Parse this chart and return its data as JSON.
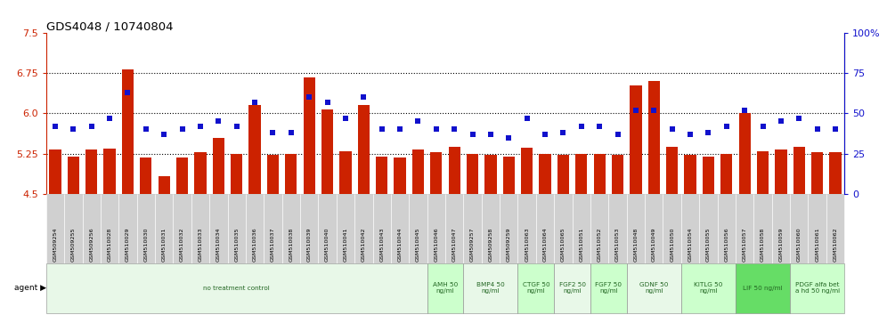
{
  "title": "GDS4048 / 10740804",
  "categories": [
    "GSM509254",
    "GSM509255",
    "GSM509256",
    "GSM510028",
    "GSM510029",
    "GSM510030",
    "GSM510031",
    "GSM510032",
    "GSM510033",
    "GSM510034",
    "GSM510035",
    "GSM510036",
    "GSM510037",
    "GSM510038",
    "GSM510039",
    "GSM510040",
    "GSM510041",
    "GSM510042",
    "GSM510043",
    "GSM510044",
    "GSM510045",
    "GSM510046",
    "GSM510047",
    "GSM509257",
    "GSM509258",
    "GSM509259",
    "GSM510063",
    "GSM510064",
    "GSM510065",
    "GSM510051",
    "GSM510052",
    "GSM510053",
    "GSM510048",
    "GSM510049",
    "GSM510050",
    "GSM510054",
    "GSM510055",
    "GSM510056",
    "GSM510057",
    "GSM510058",
    "GSM510059",
    "GSM510060",
    "GSM510061",
    "GSM510062"
  ],
  "bar_values": [
    5.33,
    5.2,
    5.32,
    5.35,
    6.82,
    5.17,
    4.83,
    5.17,
    5.27,
    5.55,
    5.25,
    6.15,
    5.23,
    5.24,
    6.68,
    6.08,
    5.3,
    6.15,
    5.2,
    5.18,
    5.33,
    5.27,
    5.37,
    5.25,
    5.23,
    5.2,
    5.36,
    5.25,
    5.23,
    5.25,
    5.25,
    5.23,
    6.52,
    6.6,
    5.38,
    5.22,
    5.2,
    5.25,
    6.0,
    5.3,
    5.33,
    5.38,
    5.27,
    5.27
  ],
  "percentile_values": [
    42,
    40,
    42,
    47,
    63,
    40,
    37,
    40,
    42,
    45,
    42,
    57,
    38,
    38,
    60,
    57,
    47,
    60,
    40,
    40,
    45,
    40,
    40,
    37,
    37,
    35,
    47,
    37,
    38,
    42,
    42,
    37,
    52,
    52,
    40,
    37,
    38,
    42,
    52,
    42,
    45,
    47,
    40,
    40
  ],
  "bar_color": "#cc2200",
  "dot_color": "#1111cc",
  "ymin": 4.5,
  "ymax": 7.5,
  "pct_min": 0,
  "pct_max": 100,
  "yticks_left": [
    4.5,
    5.25,
    6.0,
    6.75,
    7.5
  ],
  "yticks_right": [
    0,
    25,
    50,
    75,
    100
  ],
  "hlines": [
    5.25,
    6.0,
    6.75
  ],
  "agents": [
    {
      "label": "no treatment control",
      "start": 0,
      "end": 21,
      "color": "#e8f8e8"
    },
    {
      "label": "AMH 50\nng/ml",
      "start": 21,
      "end": 23,
      "color": "#ccffcc"
    },
    {
      "label": "BMP4 50\nng/ml",
      "start": 23,
      "end": 26,
      "color": "#e8f8e8"
    },
    {
      "label": "CTGF 50\nng/ml",
      "start": 26,
      "end": 28,
      "color": "#ccffcc"
    },
    {
      "label": "FGF2 50\nng/ml",
      "start": 28,
      "end": 30,
      "color": "#e8f8e8"
    },
    {
      "label": "FGF7 50\nng/ml",
      "start": 30,
      "end": 32,
      "color": "#ccffcc"
    },
    {
      "label": "GDNF 50\nng/ml",
      "start": 32,
      "end": 35,
      "color": "#e8f8e8"
    },
    {
      "label": "KITLG 50\nng/ml",
      "start": 35,
      "end": 38,
      "color": "#ccffcc"
    },
    {
      "label": "LIF 50 ng/ml",
      "start": 38,
      "end": 41,
      "color": "#66dd66"
    },
    {
      "label": "PDGF alfa bet\na hd 50 ng/ml",
      "start": 41,
      "end": 44,
      "color": "#ccffcc"
    }
  ],
  "agent_text_color": "#226622",
  "bar_color_left": "#cc2200",
  "title_fontsize": 9.5
}
